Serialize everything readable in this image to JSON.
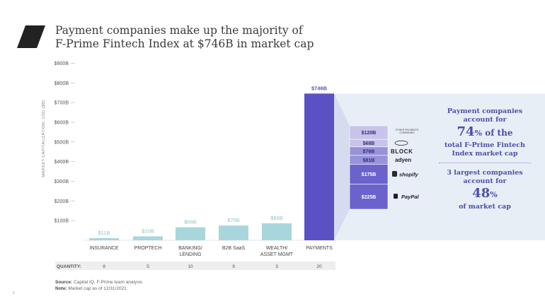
{
  "title": {
    "line1": "Payment companies make up the majority of",
    "line2": "F-Prime Fintech Index at $746B in market cap"
  },
  "colors": {
    "bar": "#a9d6dc",
    "bar_label": "#8fc4cc",
    "payments": "#5a52c4",
    "panel_bg": "#e8eef6",
    "breakdown_light": "#c7c3ea",
    "breakdown_mid": "#9892d9",
    "breakdown_dark": "#6a63cc",
    "text_dark": "#3a3a3a",
    "accent_text": "#4a4fa8"
  },
  "chart_data": {
    "type": "bar",
    "ylabel": "MARKET CAPITALIZATION: USD ($B)",
    "ylim": [
      0,
      900
    ],
    "yticks": [
      {
        "value": 100,
        "label": "$100B"
      },
      {
        "value": 200,
        "label": "$200B"
      },
      {
        "value": 300,
        "label": "$300B"
      },
      {
        "value": 400,
        "label": "$400B"
      },
      {
        "value": 500,
        "label": "$500B"
      },
      {
        "value": 600,
        "label": "$600B"
      },
      {
        "value": 700,
        "label": "$700B"
      },
      {
        "value": 800,
        "label": "$800B"
      },
      {
        "value": 900,
        "label": "$900B"
      }
    ],
    "categories": [
      {
        "line1": "INSURANCE",
        "line2": ""
      },
      {
        "line1": "PROPTECH",
        "line2": ""
      },
      {
        "line1": "BANKING/",
        "line2": "LENDING"
      },
      {
        "line1": "B2B SaaS",
        "line2": ""
      },
      {
        "line1": "WEALTH/",
        "line2": "ASSET MGMT"
      },
      {
        "line1": "PAYMENTS",
        "line2": ""
      }
    ],
    "values": [
      11,
      20,
      66,
      75,
      86,
      746
    ],
    "value_labels": [
      "$11B",
      "$20B",
      "$66B",
      "$75B",
      "$86B",
      "$746B"
    ],
    "quantity_label": "QUANTITY:",
    "quantities": [
      "8",
      "5",
      "10",
      "9",
      "3",
      "20"
    ],
    "payments_breakdown": [
      {
        "company": "PayPal",
        "value": 225,
        "label": "$225B"
      },
      {
        "company": "shopify",
        "value": 175,
        "label": "$175B"
      },
      {
        "company": "adyen",
        "value": 81,
        "label": "$81B"
      },
      {
        "company": "BLOCK",
        "value": 76,
        "label": "$76B"
      },
      {
        "company": "FIS",
        "value": 68,
        "label": "$68B"
      },
      {
        "company": "OTHER PAYMENTS COMPANIES",
        "value": 120,
        "label": "$120B"
      }
    ],
    "other_label_line1": "OTHER PAYMENTS",
    "other_label_line2": "COMPANIES"
  },
  "panel": {
    "line1": "Payment companies",
    "line2": "account for",
    "big1_num": "74",
    "big1_pct": "%",
    "big1_rest": " of the",
    "line3": "total F-Prime Fintech",
    "line4": "Index market cap",
    "line5": "3 largest companies",
    "line6": "account for",
    "big2_num": "48",
    "big2_pct": "%",
    "line7": "of market cap"
  },
  "footer": {
    "source_key": "Source:",
    "source_val": " Capital IQ, F-Prime team analysis",
    "note_key": "Note:",
    "note_val": " Market cap as of 12/31/2021"
  },
  "page_number": "1"
}
